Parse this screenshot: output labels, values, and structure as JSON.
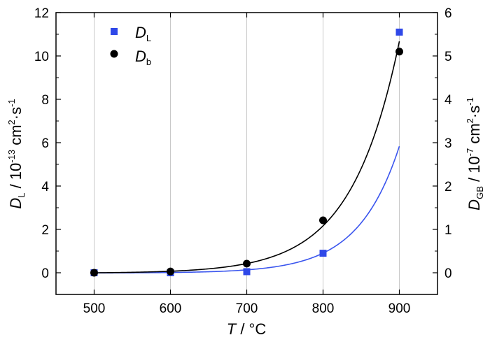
{
  "chart_data": {
    "type": "scatter",
    "x": [
      500,
      600,
      700,
      800,
      900
    ],
    "xlim": [
      450,
      950
    ],
    "xticks": [
      500,
      600,
      700,
      800,
      900
    ],
    "ylim_left": [
      -1,
      12
    ],
    "yticks_left": [
      0,
      2,
      4,
      6,
      8,
      10,
      12
    ],
    "ylim_right": [
      -0.5,
      6
    ],
    "yticks_right": [
      0,
      1,
      2,
      3,
      4,
      5,
      6
    ],
    "grid": "vertical",
    "legend_placement": "top-left",
    "xlabel": {
      "var": "T",
      "text": " / °C"
    },
    "ylabel_left": {
      "var": "D",
      "sub": "L",
      "text": " / 10",
      "exp": "-13",
      "unit": " cm",
      "exp2": "2",
      "unit2": "·s",
      "exp3": "-1"
    },
    "ylabel_right": {
      "var": "D",
      "sub": "GB",
      "text": " / 10",
      "exp": "-7",
      "unit": " cm",
      "exp2": "2",
      "unit2": "·s",
      "exp3": "-1"
    },
    "series": [
      {
        "legend_var": "D",
        "legend_sub": "L",
        "axis": "left",
        "marker": "square",
        "color": "#2F48E8",
        "values": [
          0.0,
          0.0,
          0.05,
          0.9,
          11.1
        ],
        "fit": "exponential"
      },
      {
        "legend_var": "D",
        "legend_sub": "b",
        "axis": "right",
        "marker": "circle",
        "color": "#000000",
        "values": [
          0.0,
          0.03,
          0.21,
          1.21,
          5.1
        ],
        "fit": "exponential"
      }
    ]
  }
}
